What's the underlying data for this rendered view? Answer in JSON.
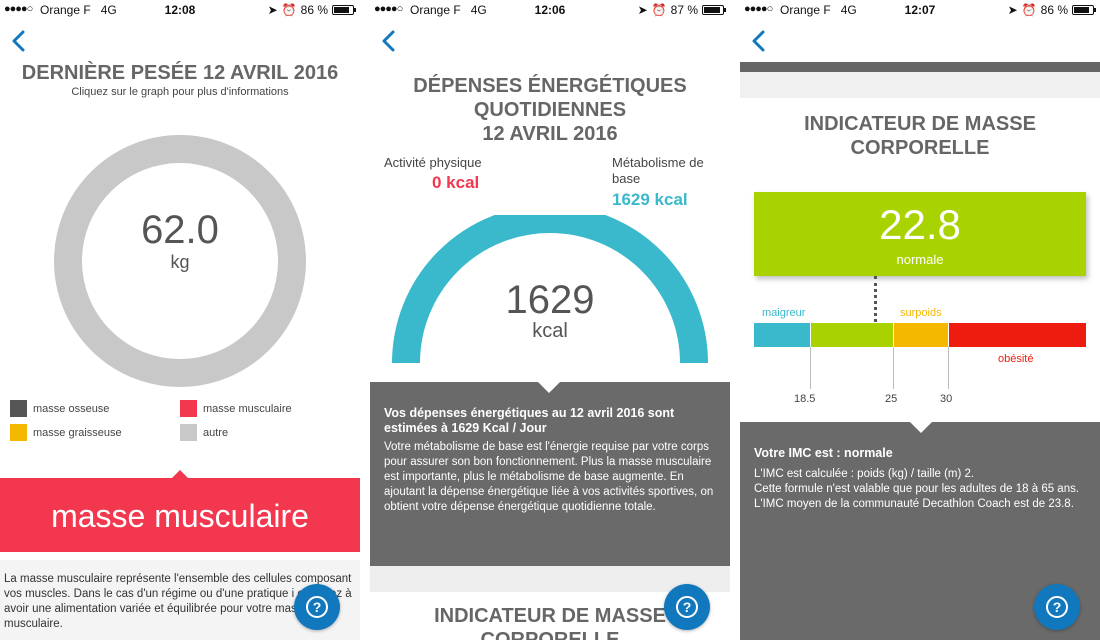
{
  "status_bars": [
    {
      "dots": "●●●●○",
      "carrier": "Orange F",
      "network": "4G",
      "time": "12:08",
      "battery": "86 %",
      "battery_level": 0.86
    },
    {
      "dots": "●●●●○",
      "carrier": "Orange F",
      "network": "4G",
      "time": "12:06",
      "battery": "87 %",
      "battery_level": 0.87
    },
    {
      "dots": "●●●●○",
      "carrier": "Orange F",
      "network": "4G",
      "time": "12:07",
      "battery": "86 %",
      "battery_level": 0.86
    }
  ],
  "screen1": {
    "title": "DERNIÈRE PESÉE 12 AVRIL 2016",
    "subtitle": "Cliquez sur le graph pour plus d'informations",
    "weight_value": "62.0",
    "weight_unit": "kg",
    "legend": [
      {
        "label": "masse osseuse",
        "color": "#555555"
      },
      {
        "label": "masse musculaire",
        "color": "#f2374f"
      },
      {
        "label": "masse graisseuse",
        "color": "#f5b800"
      },
      {
        "label": "autre",
        "color": "#c8c8c8"
      }
    ],
    "banner": "masse musculaire",
    "description": "La masse musculaire représente l'ensemble des cellules composant vos muscles. Dans le cas d'un régime ou d'une pratique i           e, veillez à avoir une alimentation variée et équilibrée pour votre masse musculaire."
  },
  "screen2": {
    "title_line1": "DÉPENSES ÉNERGÉTIQUES",
    "title_line2": "QUOTIDIENNES",
    "title_line3": "12 AVRIL 2016",
    "activity_label": "Activité physique",
    "activity_value": "0 kcal",
    "metabolism_label": "Métabolisme de base",
    "metabolism_value": "1629 kcal",
    "total_value": "1629",
    "total_unit": "kcal",
    "info_title": "Vos dépenses énergétiques au 12 avril 2016 sont estimées à 1629 Kcal / Jour",
    "info_text": "Votre métabolisme de base est l'énergie requise par votre corps pour assurer son bon fonctionnement. Plus la masse musculaire est importante, plus le métabolisme de base augmente. En ajoutant la dépense énergétique liée à vos activités sportives, on obtient votre dépense énergétique quotidienne totale.",
    "next_title_line1": "INDICATEUR DE MASSE",
    "next_title_line2": "CORPORELLE"
  },
  "screen3": {
    "title_line1": "INDICATEUR DE MASSE",
    "title_line2": "CORPORELLE",
    "bmi_value": "22.8",
    "bmi_category": "normale",
    "scale": {
      "segments": [
        {
          "label": "maigreur",
          "color": "#3ab8cc"
        },
        {
          "label": "",
          "color": "#a8d300"
        },
        {
          "label": "surpoids",
          "color": "#f5b800"
        },
        {
          "label": "obésité",
          "color": "#ee1c0e"
        }
      ],
      "ticks": [
        "18.5",
        "25",
        "30"
      ]
    },
    "info_title": "Votre IMC est : normale",
    "info_line1": "L'IMC est calculée : poids (kg) / taille (m) 2.",
    "info_line2": "Cette formule n'est valable que pour les adultes de 18 à 65 ans.",
    "info_line3": "L'IMC moyen de la communauté Decathlon Coach est de 23.8."
  },
  "help_label": "?",
  "colors": {
    "accent_blue": "#1278bd",
    "red": "#f2374f",
    "cyan": "#3ab8cc",
    "green": "#a8d300",
    "dark_box": "#6a6a6a"
  }
}
